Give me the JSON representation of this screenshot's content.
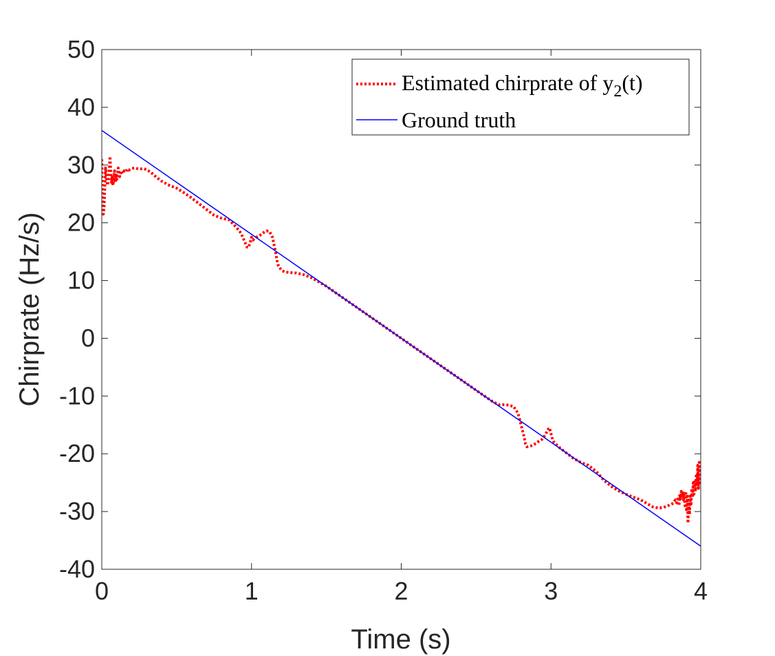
{
  "chart_data": {
    "type": "line",
    "title": "",
    "xlabel": "Time (s)",
    "ylabel": "Chirprate (Hz/s)",
    "xlim": [
      0,
      4
    ],
    "ylim": [
      -40,
      50
    ],
    "xticks": [
      0,
      1,
      2,
      3,
      4
    ],
    "xtick_labels": [
      "0",
      "1",
      "2",
      "3",
      "4"
    ],
    "yticks": [
      -40,
      -30,
      -20,
      -10,
      0,
      10,
      20,
      30,
      40,
      50
    ],
    "ytick_labels": [
      "-40",
      "-30",
      "-20",
      "-10",
      "0",
      "10",
      "20",
      "30",
      "40",
      "50"
    ],
    "grid": false,
    "legend": {
      "placement": "top-right",
      "entries": [
        {
          "label_main": "Estimated chirprate of y",
          "label_sub": "2",
          "label_tail": "(t)",
          "series": 0
        },
        {
          "label_main": "Ground truth",
          "series": 1
        }
      ]
    },
    "series": [
      {
        "name": "Estimated chirprate of y2(t)",
        "color": "#ff0000",
        "style": "dotted",
        "x": [
          0.0,
          0.005,
          0.01,
          0.015,
          0.02,
          0.025,
          0.03,
          0.035,
          0.04,
          0.045,
          0.05,
          0.055,
          0.06,
          0.065,
          0.07,
          0.075,
          0.08,
          0.085,
          0.09,
          0.095,
          0.1,
          0.11,
          0.12,
          0.13,
          0.14,
          0.15,
          0.16,
          0.17,
          0.18,
          0.2,
          0.22,
          0.25,
          0.28,
          0.3,
          0.33,
          0.36,
          0.4,
          0.45,
          0.5,
          0.55,
          0.6,
          0.65,
          0.7,
          0.75,
          0.8,
          0.85,
          0.9,
          0.93,
          0.95,
          0.97,
          0.98,
          0.99,
          1.0,
          1.01,
          1.02,
          1.04,
          1.06,
          1.08,
          1.1,
          1.12,
          1.14,
          1.16,
          1.17,
          1.18,
          1.2,
          1.22,
          1.25,
          1.3,
          1.35,
          1.4,
          1.5,
          1.6,
          1.7,
          1.8,
          1.9,
          2.0,
          2.1,
          2.2,
          2.3,
          2.4,
          2.5,
          2.6,
          2.65,
          2.7,
          2.75,
          2.78,
          2.8,
          2.82,
          2.83,
          2.84,
          2.86,
          2.88,
          2.9,
          2.92,
          2.94,
          2.96,
          2.98,
          2.99,
          3.0,
          3.01,
          3.02,
          3.04,
          3.06,
          3.1,
          3.15,
          3.2,
          3.25,
          3.3,
          3.35,
          3.4,
          3.45,
          3.5,
          3.55,
          3.6,
          3.64,
          3.68,
          3.72,
          3.75,
          3.78,
          3.8,
          3.82,
          3.83,
          3.84,
          3.85,
          3.855,
          3.86,
          3.865,
          3.87,
          3.875,
          3.88,
          3.885,
          3.89,
          3.895,
          3.9,
          3.905,
          3.91,
          3.915,
          3.92,
          3.925,
          3.93,
          3.935,
          3.94,
          3.945,
          3.95,
          3.955,
          3.96,
          3.965,
          3.97,
          3.975,
          3.98,
          3.985,
          3.99,
          3.995,
          4.0
        ],
        "values": [
          31.0,
          24.0,
          21.5,
          22.5,
          26.0,
          29.5,
          28.0,
          27.0,
          26.5,
          28.0,
          29.5,
          31.5,
          29.0,
          27.0,
          28.0,
          26.5,
          27.5,
          29.0,
          27.0,
          28.5,
          27.5,
          29.5,
          28.0,
          29.0,
          28.5,
          29.0,
          28.8,
          29.3,
          29.1,
          29.4,
          29.5,
          29.3,
          29.4,
          29.2,
          28.7,
          28.0,
          27.2,
          26.5,
          26.0,
          25.2,
          24.3,
          23.3,
          22.3,
          21.3,
          20.8,
          20.5,
          19.2,
          18.2,
          17.0,
          15.8,
          15.7,
          16.5,
          17.5,
          17.0,
          17.3,
          17.6,
          17.9,
          18.3,
          18.6,
          18.5,
          17.5,
          15.0,
          13.5,
          12.5,
          11.8,
          11.5,
          11.4,
          11.3,
          11.0,
          10.5,
          9.0,
          7.2,
          5.4,
          3.6,
          1.8,
          0.0,
          -1.8,
          -3.6,
          -5.4,
          -7.2,
          -9.0,
          -10.8,
          -11.5,
          -11.5,
          -11.8,
          -13.0,
          -15.0,
          -17.0,
          -18.3,
          -18.8,
          -18.7,
          -18.5,
          -18.2,
          -17.8,
          -17.5,
          -16.8,
          -15.8,
          -15.5,
          -16.5,
          -17.5,
          -18.0,
          -18.5,
          -19.0,
          -19.8,
          -20.8,
          -21.5,
          -22.0,
          -23.0,
          -24.5,
          -25.6,
          -26.4,
          -27.0,
          -27.5,
          -28.0,
          -28.6,
          -29.2,
          -29.4,
          -29.3,
          -29.0,
          -28.8,
          -28.5,
          -28.0,
          -28.5,
          -27.5,
          -29.0,
          -27.0,
          -28.0,
          -26.5,
          -27.5,
          -26.5,
          -28.0,
          -27.0,
          -29.0,
          -26.5,
          -30.0,
          -27.0,
          -32.0,
          -28.0,
          -30.5,
          -27.0,
          -29.0,
          -26.0,
          -27.5,
          -25.0,
          -27.0,
          -24.5,
          -26.5,
          -23.5,
          -25.5,
          -22.0,
          -26.0,
          -21.5,
          -25.0,
          -22.0
        ]
      },
      {
        "name": "Ground truth",
        "color": "#0000ff",
        "style": "solid",
        "x": [
          0,
          4
        ],
        "values": [
          36,
          -36
        ]
      }
    ]
  }
}
